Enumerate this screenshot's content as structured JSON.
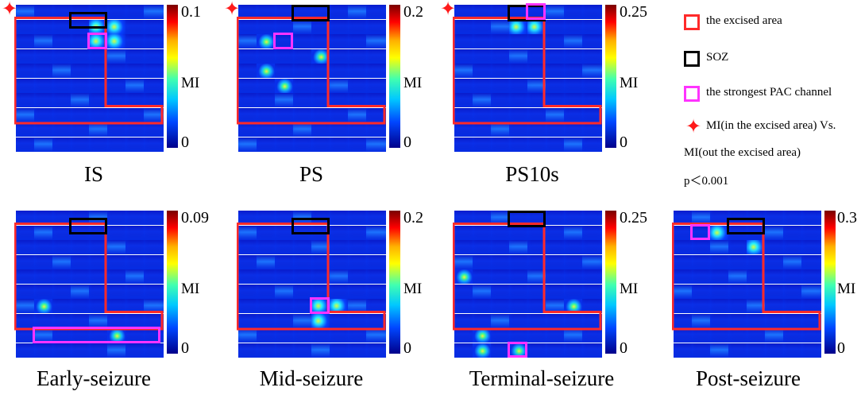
{
  "legend": {
    "excised": "the excised area",
    "soz": "SOZ",
    "strongest": "the strongest PAC channel",
    "stat_line1": "MI(in the excised area) Vs.",
    "stat_line2": "MI(out the excised area)",
    "stat_line3": "p＜0.001"
  },
  "colors": {
    "excised": "#ff2a2a",
    "soz": "#000000",
    "strongest": "#ff33ff",
    "star": "#ff1a1a"
  },
  "panels": [
    {
      "label": "IS",
      "cbar_max": "0.1",
      "cbar_min": "0",
      "mi": "MI",
      "star": true
    },
    {
      "label": "PS",
      "cbar_max": "0.2",
      "cbar_min": "0",
      "mi": "MI",
      "star": true
    },
    {
      "label": "PS10s",
      "cbar_max": "0.25",
      "cbar_min": "0",
      "mi": "MI",
      "star": true
    },
    {
      "label": "Early-seizure",
      "cbar_max": "0.09",
      "cbar_min": "0",
      "mi": "MI",
      "star": false
    },
    {
      "label": "Mid-seizure",
      "cbar_max": "0.2",
      "cbar_min": "0",
      "mi": "MI",
      "star": false
    },
    {
      "label": "Terminal-seizure",
      "cbar_max": "0.25",
      "cbar_min": "0",
      "mi": "MI",
      "star": false
    },
    {
      "label": "Post-seizure",
      "cbar_max": "0.3",
      "cbar_min": "0",
      "mi": "MI",
      "star": false
    }
  ]
}
